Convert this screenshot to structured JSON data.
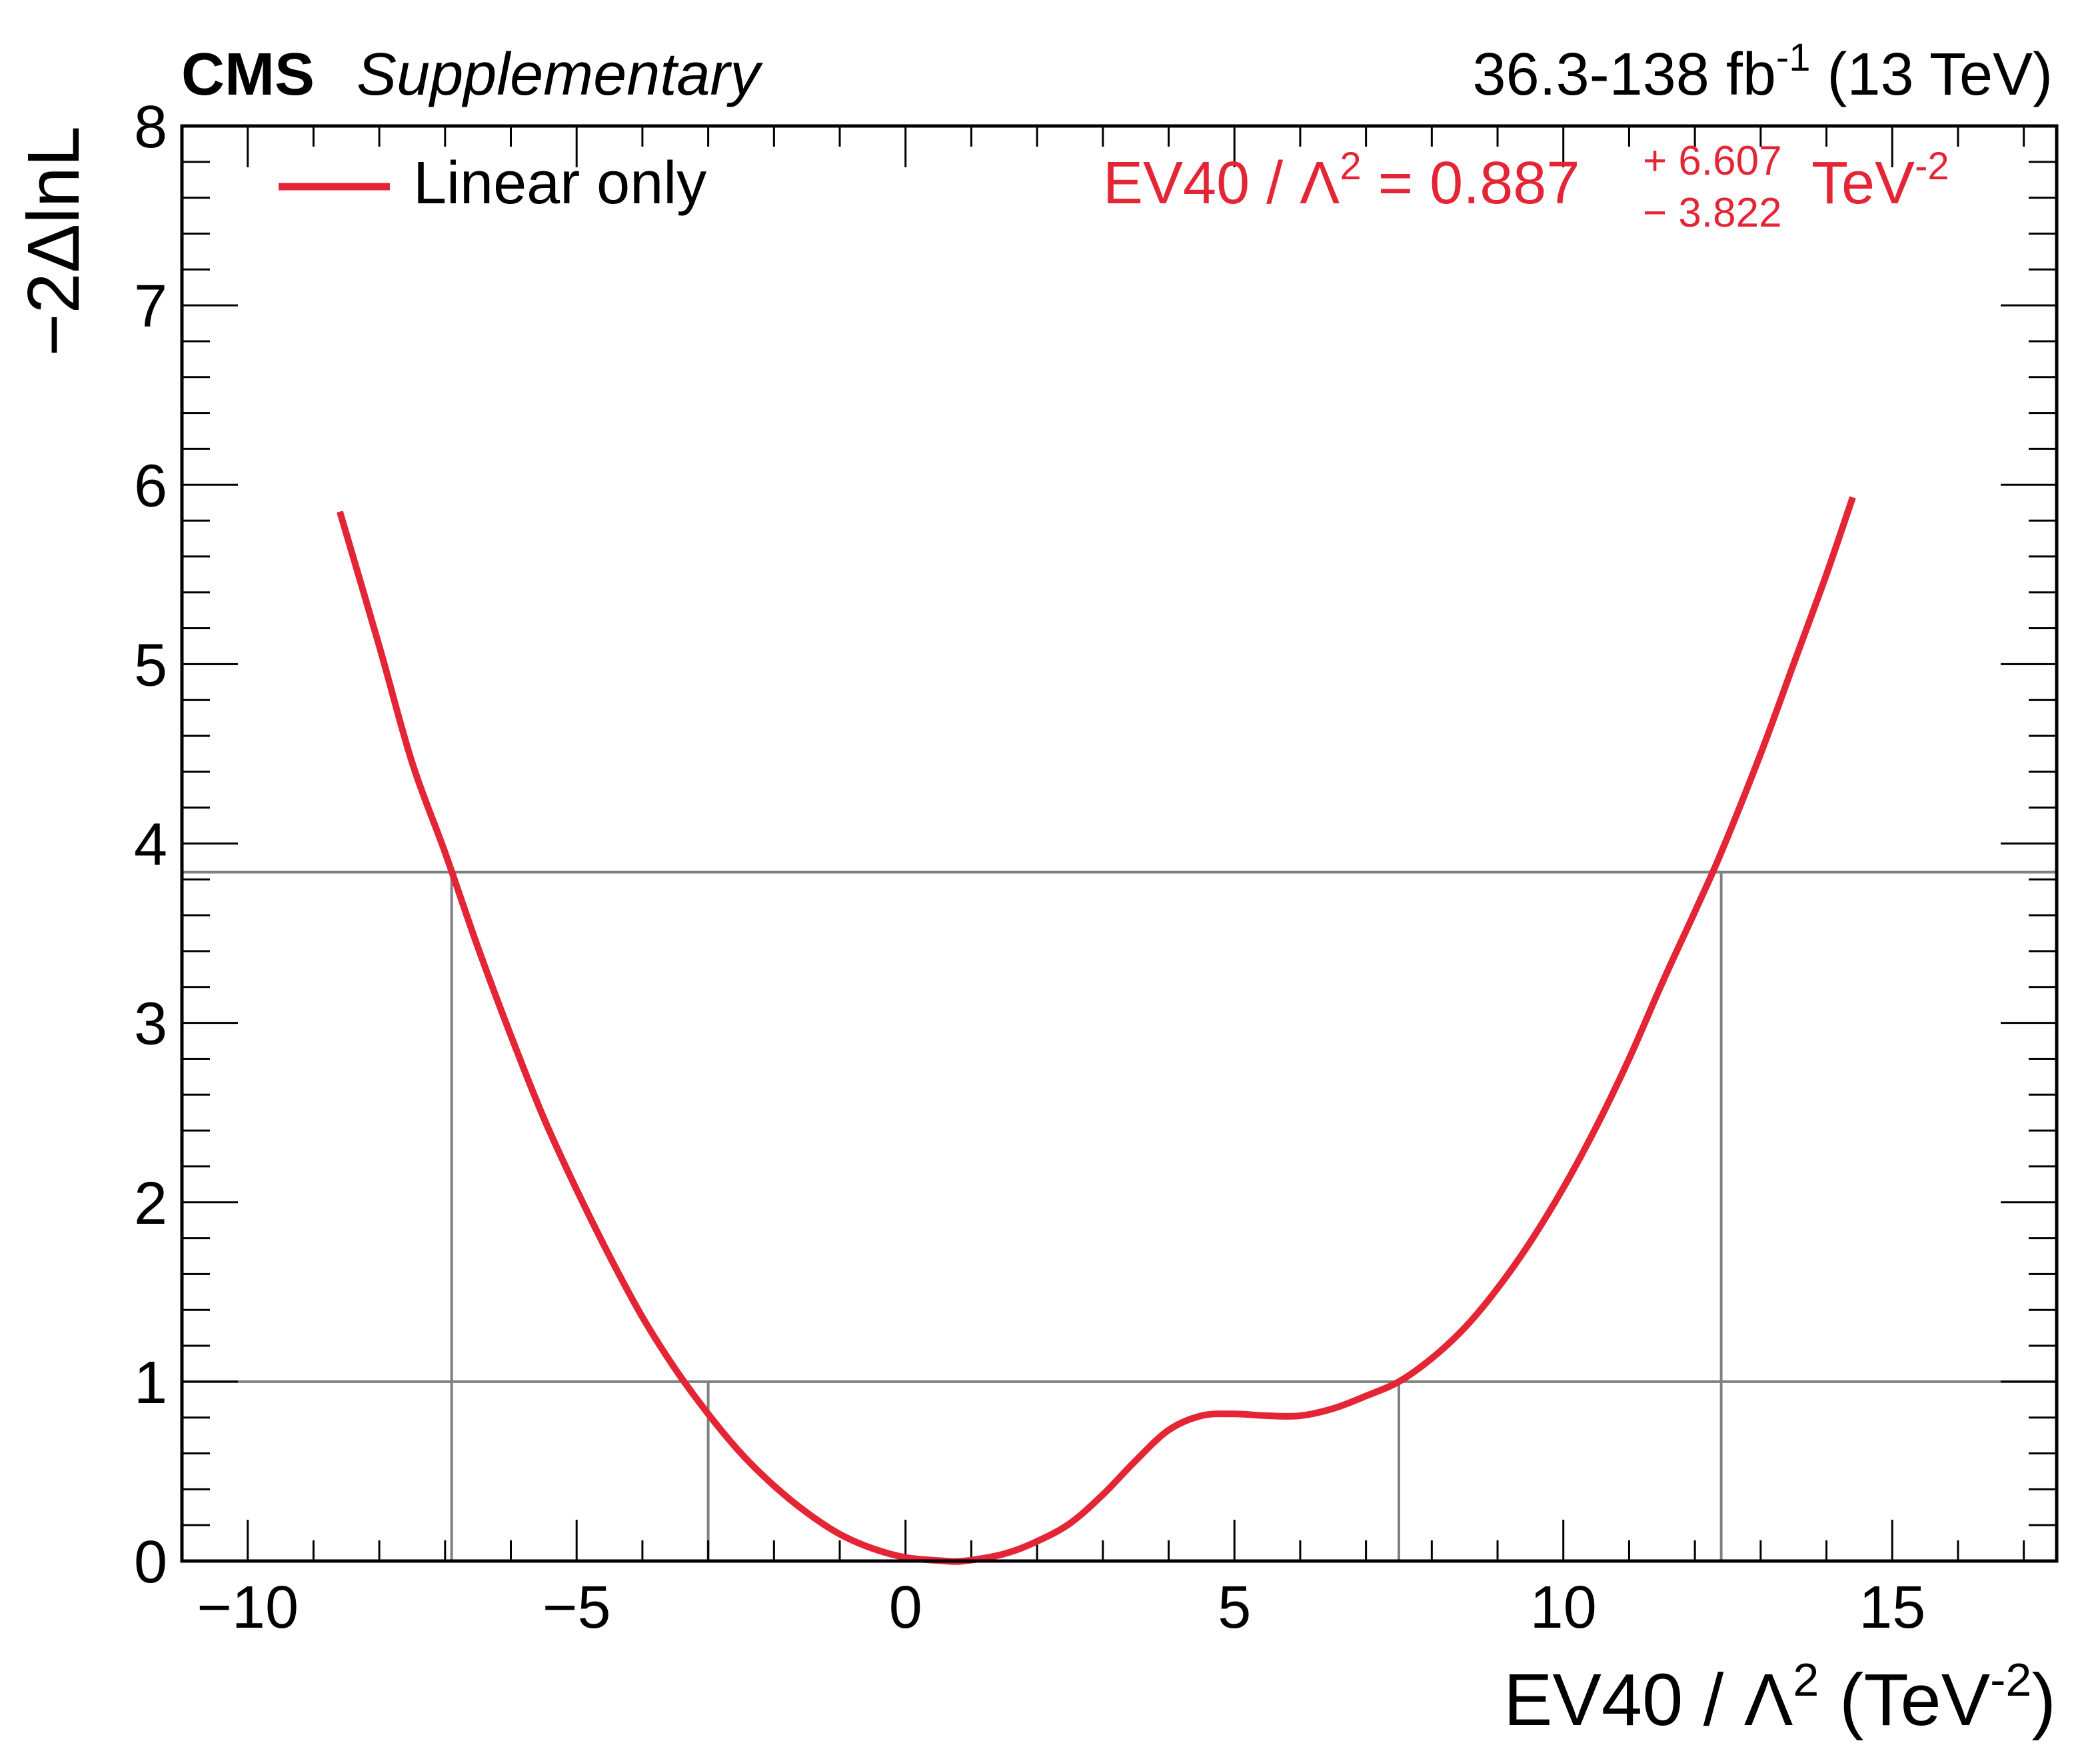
{
  "header": {
    "experiment": "CMS",
    "tag": "Supplementary",
    "lumi_main": "36.3-138 fb",
    "lumi_exp": "-1",
    "energy": " (13 TeV)"
  },
  "axes": {
    "ylabel": "−2ΔlnL",
    "xlabel_main": "EV40 / Λ",
    "xlabel_sq": "2",
    "xlabel_unit": " (TeV",
    "xlabel_unit_exp": "-2",
    "xlabel_close": ")"
  },
  "legend": {
    "label": "Linear only",
    "line_color": "#E42536"
  },
  "result": {
    "prefix": "EV40 / Λ",
    "sq": "2",
    "equals": " = 0.887",
    "up": "+ 6.607",
    "down": "− 3.822",
    "unit": "TeV",
    "unit_exp": "-2",
    "color": "#E42536"
  },
  "chart_data": {
    "type": "line",
    "xlim": [
      -11,
      17.5
    ],
    "ylim": [
      0,
      8
    ],
    "x_ticks": [
      -10,
      -5,
      0,
      5,
      10,
      15
    ],
    "x_tick_labels": [
      "−10",
      "−5",
      "0",
      "5",
      "10",
      "15"
    ],
    "y_ticks": [
      0,
      1,
      2,
      3,
      4,
      5,
      6,
      7,
      8
    ],
    "y_tick_labels": [
      "0",
      "1",
      "2",
      "3",
      "4",
      "5",
      "6",
      "7",
      "8"
    ],
    "reference_lines_y": [
      1,
      3.84
    ],
    "interval_markers_x": [
      -6.9,
      -3.0,
      7.5,
      12.4
    ],
    "grid": false,
    "legend_position": "top-left",
    "series": [
      {
        "name": "Linear only",
        "color": "#E42536",
        "x": [
          -8.6,
          -8.0,
          -7.5,
          -7.0,
          -6.5,
          -6.0,
          -5.5,
          -5.0,
          -4.5,
          -4.0,
          -3.5,
          -3.0,
          -2.5,
          -2.0,
          -1.5,
          -1.0,
          -0.5,
          0.0,
          0.5,
          0.887,
          1.5,
          2.0,
          2.5,
          3.0,
          3.5,
          4.0,
          4.5,
          5.0,
          5.5,
          6.0,
          6.5,
          7.0,
          7.5,
          8.0,
          8.5,
          9.0,
          9.5,
          10.0,
          10.5,
          11.0,
          11.5,
          12.0,
          12.4,
          13.0,
          13.5,
          14.0,
          14.4
        ],
        "y": [
          5.85,
          5.1,
          4.45,
          3.95,
          3.42,
          2.93,
          2.47,
          2.07,
          1.7,
          1.36,
          1.07,
          0.82,
          0.6,
          0.42,
          0.27,
          0.15,
          0.07,
          0.02,
          0.003,
          0.0,
          0.04,
          0.11,
          0.21,
          0.37,
          0.56,
          0.73,
          0.81,
          0.82,
          0.81,
          0.81,
          0.85,
          0.92,
          1.0,
          1.13,
          1.3,
          1.52,
          1.78,
          2.08,
          2.42,
          2.8,
          3.22,
          3.62,
          3.95,
          4.5,
          5.0,
          5.5,
          5.93
        ]
      }
    ]
  }
}
